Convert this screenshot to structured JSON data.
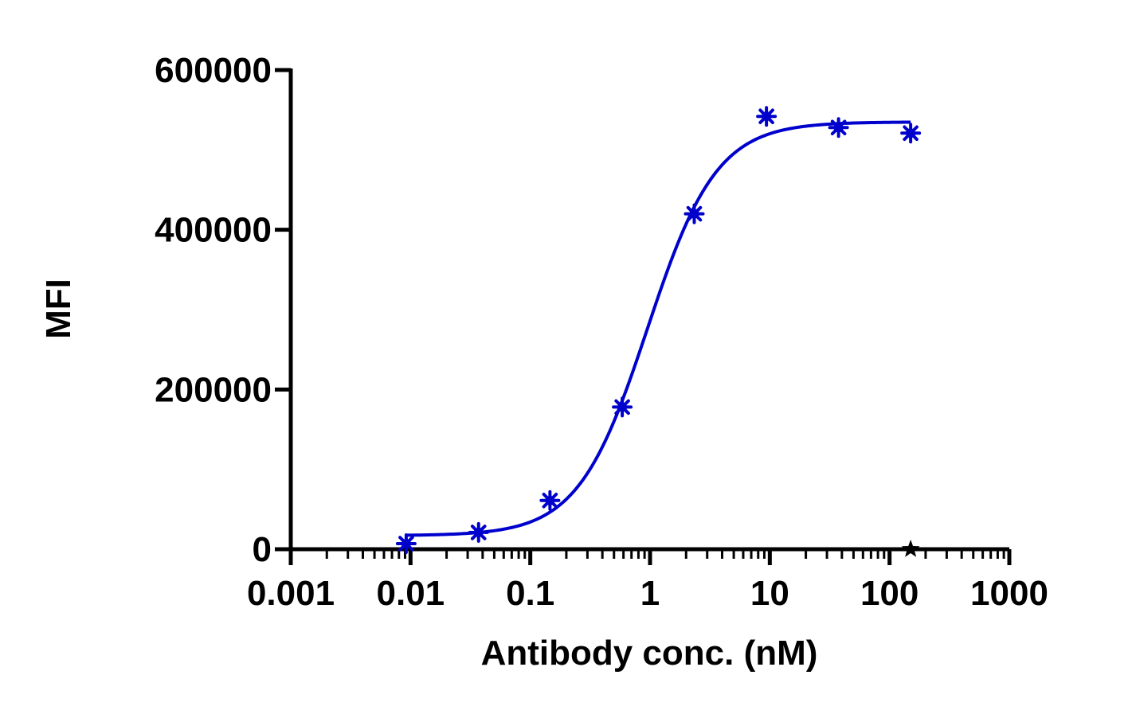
{
  "chart_data": {
    "type": "scatter",
    "title": "",
    "xlabel": "Antibody conc. (nM)",
    "ylabel": "MFI",
    "x_scale": "log",
    "xlim": [
      0.001,
      1000
    ],
    "ylim": [
      0,
      600000
    ],
    "x_ticks": [
      0.001,
      0.01,
      0.1,
      1,
      10,
      100,
      1000
    ],
    "x_tick_labels": [
      "0.001",
      "0.01",
      "0.1",
      "1",
      "10",
      "100",
      "1000"
    ],
    "y_ticks": [
      0,
      200000,
      400000,
      600000
    ],
    "y_tick_labels": [
      "0",
      "200000",
      "400000",
      "600000"
    ],
    "grid": false,
    "legend": "none",
    "series": [
      {
        "marker": "asterisk",
        "color": "#0000CC",
        "points": [
          {
            "x": 0.0092,
            "y": 7000
          },
          {
            "x": 0.037,
            "y": 21000
          },
          {
            "x": 0.146,
            "y": 61000
          },
          {
            "x": 0.586,
            "y": 178000
          },
          {
            "x": 2.34,
            "y": 420000
          },
          {
            "x": 9.375,
            "y": 542000
          },
          {
            "x": 37.5,
            "y": 528000
          },
          {
            "x": 150,
            "y": 521000
          }
        ]
      },
      {
        "marker": "star",
        "color": "#000000",
        "points": [
          {
            "x": 150,
            "y": 0
          }
        ]
      }
    ],
    "fit_curve": {
      "model": "4PL",
      "color": "#0000CC",
      "bottom": 17000,
      "top": 535000,
      "ec50": 0.95,
      "hill": 1.5,
      "x_range": [
        0.0092,
        150
      ]
    }
  }
}
